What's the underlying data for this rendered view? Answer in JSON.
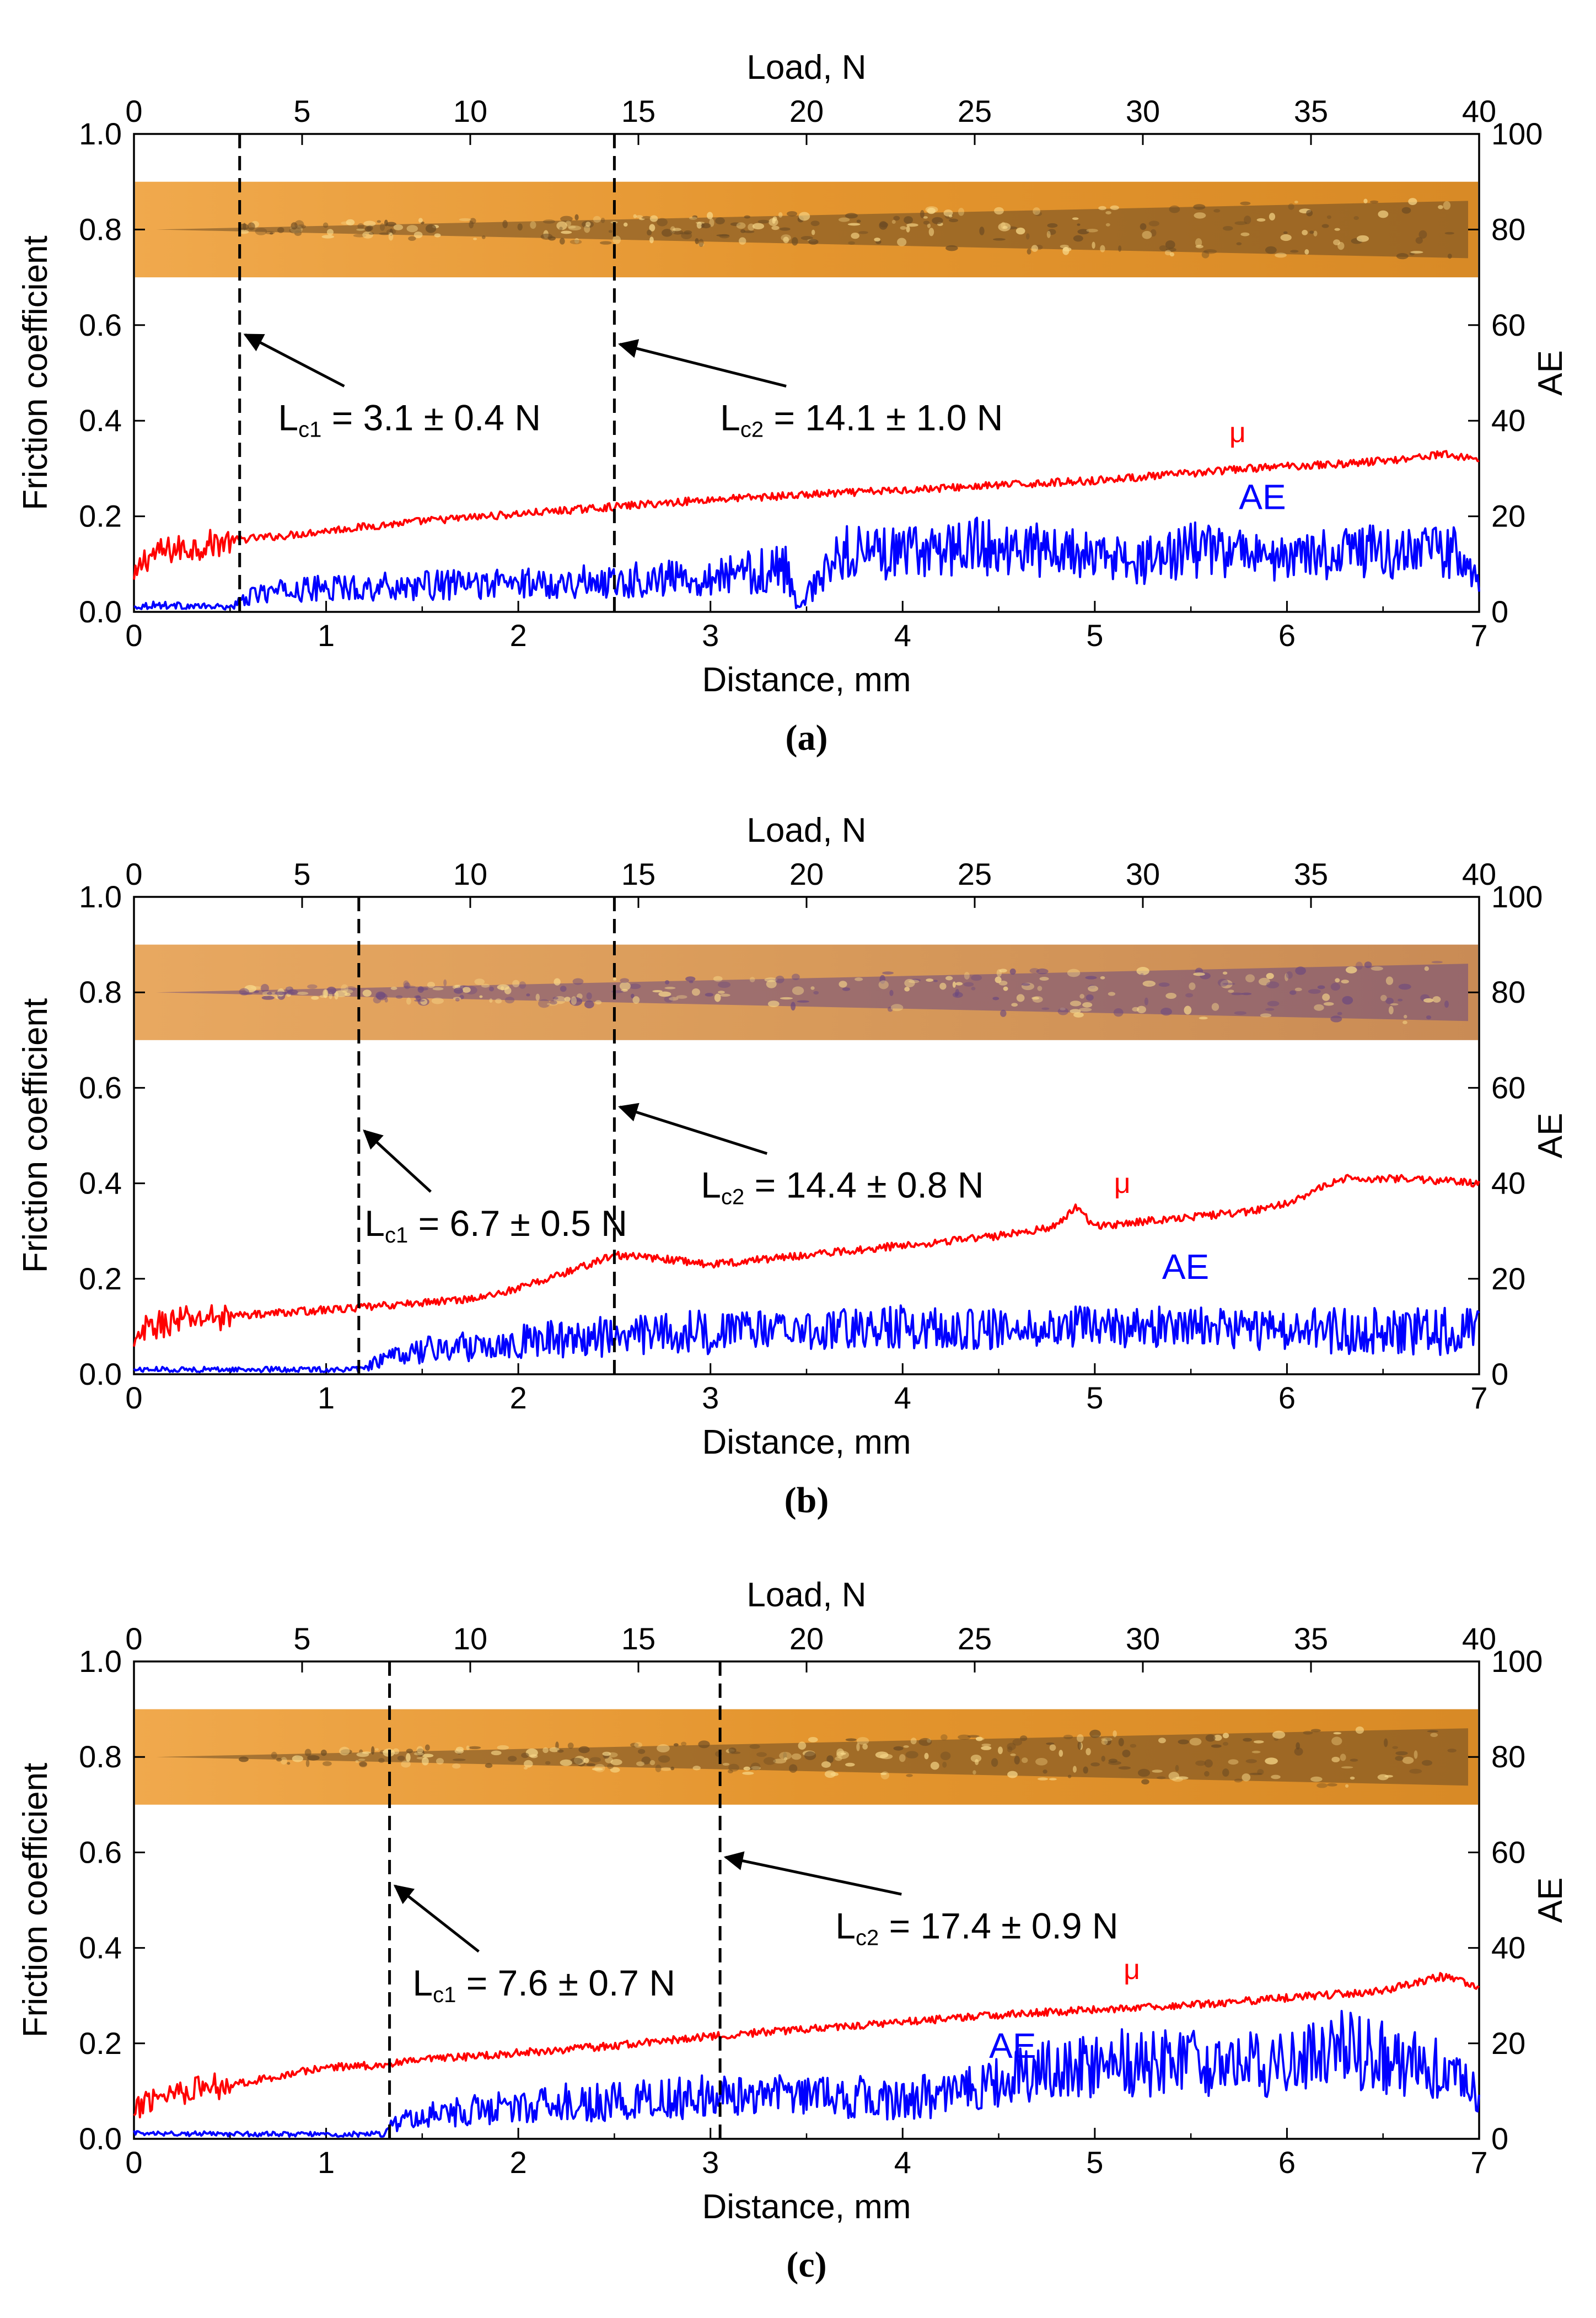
{
  "colors": {
    "mu": "#ff0000",
    "ae": "#0000ff",
    "axis": "#000000",
    "strip": "#e7972e",
    "strip_dark": "#6b4a22"
  },
  "chart_data": [
    {
      "type": "line",
      "panel_caption": "(a)",
      "caption_letter": "a",
      "xlabel": "Distance, mm",
      "x2label": "Load, N",
      "ylabel": "Friction coefficient",
      "y2label": "AE",
      "xlim": [
        0,
        7
      ],
      "x2lim": [
        0,
        40
      ],
      "ylim": [
        0,
        1.0
      ],
      "y2lim": [
        0,
        100
      ],
      "xticks": [
        "0",
        "1",
        "2",
        "3",
        "4",
        "5",
        "6",
        "7"
      ],
      "x2ticks": [
        "0",
        "5",
        "10",
        "15",
        "20",
        "25",
        "30",
        "35",
        "40"
      ],
      "yticks": [
        "0.0",
        "0.2",
        "0.4",
        "0.6",
        "0.8",
        "1.0"
      ],
      "y2ticks": [
        "0",
        "20",
        "40",
        "60",
        "80",
        "100"
      ],
      "grid": false,
      "strip": {
        "y_from": 0.7,
        "y_to": 0.9,
        "tone": "amber",
        "label": "scratch track micrograph"
      },
      "critical_loads": [
        {
          "id": "Lc1",
          "L": "L",
          "sub": "c1",
          "rest": " = 3.1 ± 0.4 N",
          "x": 0.55,
          "arrow_tip_y": 0.58,
          "label_x": 0.75,
          "label_y": 0.38
        },
        {
          "id": "Lc2",
          "L": "L",
          "sub": "c2",
          "rest": " = 14.1 ± 1.0 N",
          "x": 2.5,
          "arrow_tip_y": 0.56,
          "label_x": 3.05,
          "label_y": 0.38
        }
      ],
      "series": [
        {
          "name": "μ",
          "axis": "left",
          "color": "#ff0000",
          "label_x": 5.7,
          "label_y": 0.355,
          "x": [
            0,
            0.05,
            0.1,
            0.2,
            0.3,
            0.5,
            0.8,
            1.0,
            1.5,
            2.0,
            2.5,
            3.0,
            3.5,
            4.0,
            4.5,
            5.0,
            5.5,
            5.8,
            6.0,
            6.3,
            6.6,
            6.8,
            7.0
          ],
          "values": [
            0.06,
            0.11,
            0.12,
            0.13,
            0.135,
            0.15,
            0.16,
            0.17,
            0.19,
            0.205,
            0.22,
            0.235,
            0.245,
            0.255,
            0.265,
            0.275,
            0.29,
            0.3,
            0.305,
            0.31,
            0.32,
            0.33,
            0.32
          ]
        },
        {
          "name": "AE",
          "axis": "right",
          "color": "#0000ff",
          "label_x": 5.75,
          "label_y": 21.5,
          "x": [
            0,
            0.1,
            0.3,
            0.5,
            0.55,
            0.65,
            1.0,
            1.5,
            2.0,
            2.5,
            3.0,
            3.4,
            3.45,
            3.7,
            4.0,
            4.3,
            4.6,
            5.0,
            5.2,
            5.5,
            5.8,
            6.0,
            6.3,
            6.6,
            6.9,
            7.0
          ],
          "values": [
            1,
            1.5,
            1.2,
            1,
            2,
            4,
            5,
            5.5,
            6,
            6.5,
            7.5,
            9,
            1,
            13,
            12,
            14,
            13,
            12,
            10,
            13,
            12,
            11,
            13,
            12,
            13,
            5
          ]
        }
      ]
    },
    {
      "type": "line",
      "panel_caption": "(b)",
      "caption_letter": "b",
      "xlabel": "Distance, mm",
      "x2label": "Load, N",
      "ylabel": "Friction coefficient",
      "y2label": "AE",
      "xlim": [
        0,
        7
      ],
      "x2lim": [
        0,
        40
      ],
      "ylim": [
        0,
        1.0
      ],
      "y2lim": [
        0,
        100
      ],
      "xticks": [
        "0",
        "1",
        "2",
        "3",
        "4",
        "5",
        "6",
        "7"
      ],
      "x2ticks": [
        "0",
        "5",
        "10",
        "15",
        "20",
        "25",
        "30",
        "35",
        "40"
      ],
      "yticks": [
        "0.0",
        "0.2",
        "0.4",
        "0.6",
        "0.8",
        "1.0"
      ],
      "y2ticks": [
        "0",
        "20",
        "40",
        "60",
        "80",
        "100"
      ],
      "grid": false,
      "strip": {
        "y_from": 0.7,
        "y_to": 0.9,
        "tone": "violet",
        "label": "scratch track micrograph"
      },
      "critical_loads": [
        {
          "id": "Lc1",
          "L": "L",
          "sub": "c1",
          "rest": " = 6.7 ± 0.5 N",
          "x": 1.17,
          "arrow_tip_y": 0.51,
          "label_x": 1.2,
          "label_y": 0.29
        },
        {
          "id": "Lc2",
          "L": "L",
          "sub": "c2",
          "rest": " = 14.4 ± 0.8 N",
          "x": 2.5,
          "arrow_tip_y": 0.56,
          "label_x": 2.95,
          "label_y": 0.37
        }
      ],
      "series": [
        {
          "name": "μ",
          "axis": "left",
          "color": "#ff0000",
          "label_x": 5.1,
          "label_y": 0.38,
          "x": [
            0,
            0.05,
            0.1,
            0.2,
            0.4,
            0.6,
            0.8,
            1.0,
            1.2,
            1.5,
            1.8,
            2.0,
            2.3,
            2.5,
            2.8,
            3.0,
            3.5,
            4.0,
            4.5,
            4.8,
            4.9,
            5.0,
            5.5,
            5.8,
            6.0,
            6.3,
            6.6,
            7.0
          ],
          "values": [
            0.05,
            0.09,
            0.1,
            0.11,
            0.12,
            0.125,
            0.13,
            0.135,
            0.14,
            0.15,
            0.16,
            0.18,
            0.22,
            0.25,
            0.24,
            0.23,
            0.25,
            0.27,
            0.29,
            0.31,
            0.35,
            0.31,
            0.33,
            0.34,
            0.36,
            0.41,
            0.41,
            0.4
          ]
        },
        {
          "name": "AE",
          "axis": "right",
          "color": "#0000ff",
          "label_x": 5.35,
          "label_y": 20,
          "x": [
            0,
            0.1,
            0.5,
            1.0,
            1.2,
            1.25,
            1.5,
            2.0,
            2.5,
            3.0,
            3.5,
            4.0,
            4.5,
            5.0,
            5.5,
            6.0,
            6.5,
            7.0
          ],
          "values": [
            1,
            1,
            1,
            1,
            1,
            2.5,
            5,
            7,
            8,
            9,
            9.5,
            10,
            9.5,
            10,
            10,
            9,
            9,
            9
          ]
        }
      ]
    },
    {
      "type": "line",
      "panel_caption": "(c)",
      "caption_letter": "c",
      "xlabel": "Distance, mm",
      "x2label": "Load, N",
      "ylabel": "Friction coefficient",
      "y2label": "AE",
      "xlim": [
        0,
        7
      ],
      "x2lim": [
        0,
        40
      ],
      "ylim": [
        0,
        1.0
      ],
      "y2lim": [
        0,
        100
      ],
      "xticks": [
        "0",
        "1",
        "2",
        "3",
        "4",
        "5",
        "6",
        "7"
      ],
      "x2ticks": [
        "0",
        "5",
        "10",
        "15",
        "20",
        "25",
        "30",
        "35",
        "40"
      ],
      "yticks": [
        "0.0",
        "0.2",
        "0.4",
        "0.6",
        "0.8",
        "1.0"
      ],
      "y2ticks": [
        "0",
        "20",
        "40",
        "60",
        "80",
        "100"
      ],
      "grid": false,
      "strip": {
        "y_from": 0.7,
        "y_to": 0.9,
        "tone": "amber",
        "label": "scratch track micrograph"
      },
      "critical_loads": [
        {
          "id": "Lc1",
          "L": "L",
          "sub": "c1",
          "rest": " = 7.6 ± 0.7 N",
          "x": 1.33,
          "arrow_tip_y": 0.53,
          "label_x": 1.45,
          "label_y": 0.3
        },
        {
          "id": "Lc2",
          "L": "L",
          "sub": "c2",
          "rest": " = 17.4 ± 0.9 N",
          "x": 3.05,
          "arrow_tip_y": 0.59,
          "label_x": 3.65,
          "label_y": 0.42
        }
      ],
      "series": [
        {
          "name": "μ",
          "axis": "left",
          "color": "#ff0000",
          "label_x": 5.15,
          "label_y": 0.335,
          "x": [
            0,
            0.05,
            0.1,
            0.2,
            0.4,
            0.6,
            0.8,
            1.0,
            1.3,
            1.5,
            2.0,
            2.5,
            3.0,
            3.5,
            4.0,
            4.5,
            5.0,
            5.5,
            6.0,
            6.5,
            6.8,
            7.0
          ],
          "values": [
            0.04,
            0.08,
            0.09,
            0.1,
            0.11,
            0.12,
            0.135,
            0.15,
            0.155,
            0.165,
            0.18,
            0.195,
            0.215,
            0.23,
            0.245,
            0.26,
            0.27,
            0.28,
            0.295,
            0.31,
            0.34,
            0.32
          ]
        },
        {
          "name": "AE",
          "axis": "right",
          "color": "#0000ff",
          "label_x": 4.45,
          "label_y": 17,
          "x": [
            0,
            0.1,
            0.5,
            1.0,
            1.3,
            1.35,
            1.5,
            2.0,
            2.5,
            3.0,
            3.5,
            4.0,
            4.3,
            4.6,
            5.0,
            5.5,
            6.0,
            6.3,
            6.5,
            6.8,
            7.0
          ],
          "values": [
            1.5,
            1,
            1,
            1,
            1,
            3,
            5,
            7,
            8,
            9,
            9.5,
            8,
            10,
            13,
            16,
            16,
            15,
            19,
            17,
            15,
            10
          ]
        }
      ]
    }
  ]
}
